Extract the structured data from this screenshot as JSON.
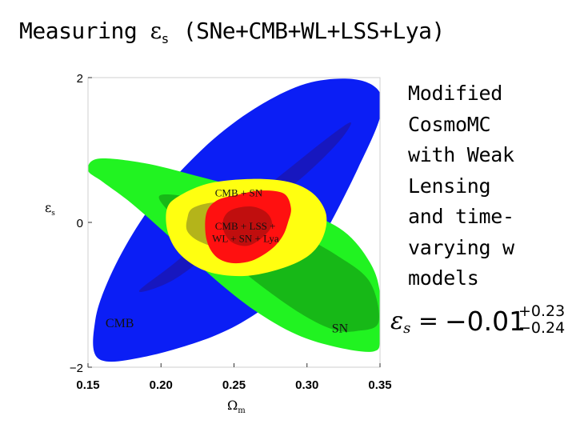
{
  "slide": {
    "title": "Measuring",
    "title_symbol": "ε",
    "title_subscript": "s",
    "title_rest": "(SNe+CMB+WL+LSS+Lya)",
    "side_note": "Modified\nCosmoMC\nwith Weak\nLensing\nand time-\nvarying w\nmodels",
    "result": {
      "lhs_symbol": "ε",
      "lhs_subscript": "s",
      "equals": "=",
      "value": "−0.01",
      "upper": "+0.23",
      "lower": "−0.24"
    }
  },
  "chart_data": {
    "type": "contour",
    "xlabel": "Ω",
    "xlabel_sub": "m",
    "ylabel": "ε",
    "ylabel_sub": "s",
    "xlim": [
      0.15,
      0.35
    ],
    "ylim": [
      -2,
      2
    ],
    "x_ticks": [
      {
        "value": 0.15,
        "label": "0.15"
      },
      {
        "value": 0.2,
        "label": "0.20"
      },
      {
        "value": 0.25,
        "label": "0.25"
      },
      {
        "value": 0.3,
        "label": "0.30"
      },
      {
        "value": 0.35,
        "label": "0.35"
      }
    ],
    "y_ticks": [
      {
        "value": 2,
        "label": "2"
      },
      {
        "value": 0,
        "label": "0"
      },
      {
        "value": -2,
        "label": "−2"
      }
    ],
    "annotations": [
      {
        "text": "CMB",
        "x": 0.162,
        "y": -1.45
      },
      {
        "text": "SN",
        "x": 0.317,
        "y": -1.52
      },
      {
        "text": "CMB + SN",
        "x": 0.237,
        "y": 0.36
      },
      {
        "text": "CMB + LSS +",
        "x": 0.237,
        "y": -0.1
      },
      {
        "text": "WL + SN + Lya",
        "x": 0.235,
        "y": -0.27
      }
    ],
    "colors": {
      "cmb_outer": "#0b1ef5",
      "cmb_inner": "#1717bf",
      "sn_outer": "#21f321",
      "sn_inner": "#17b817",
      "cmbsn_outer": "#ffff10",
      "cmbsn_inner": "#b4b41a",
      "all_outer": "#ff1010",
      "all_inner": "#c00e0e"
    },
    "contours": [
      {
        "name": "CMB",
        "level": "95%",
        "color": "cmb_outer",
        "points": [
          [
            0.157,
            -1.88
          ],
          [
            0.188,
            -1.86
          ],
          [
            0.235,
            -1.58
          ],
          [
            0.268,
            -1.22
          ],
          [
            0.295,
            -0.75
          ],
          [
            0.315,
            -0.05
          ],
          [
            0.335,
            0.75
          ],
          [
            0.35,
            1.45
          ],
          [
            0.349,
            1.82
          ],
          [
            0.331,
            1.98
          ],
          [
            0.3,
            1.92
          ],
          [
            0.268,
            1.62
          ],
          [
            0.236,
            1.15
          ],
          [
            0.205,
            0.52
          ],
          [
            0.183,
            -0.08
          ],
          [
            0.165,
            -0.75
          ],
          [
            0.155,
            -1.35
          ]
        ]
      },
      {
        "name": "CMB",
        "level": "68%",
        "color": "cmb_inner",
        "points": [
          [
            0.185,
            -0.95
          ],
          [
            0.21,
            -0.55
          ],
          [
            0.245,
            0.05
          ],
          [
            0.285,
            0.7
          ],
          [
            0.315,
            1.18
          ],
          [
            0.33,
            1.38
          ],
          [
            0.322,
            1.12
          ],
          [
            0.3,
            0.68
          ],
          [
            0.27,
            0.18
          ],
          [
            0.24,
            -0.32
          ],
          [
            0.208,
            -0.8
          ]
        ]
      },
      {
        "name": "SN",
        "level": "95%",
        "color": "sn_outer",
        "points": [
          [
            0.157,
            0.88
          ],
          [
            0.188,
            0.82
          ],
          [
            0.223,
            0.65
          ],
          [
            0.262,
            0.43
          ],
          [
            0.295,
            0.18
          ],
          [
            0.325,
            -0.12
          ],
          [
            0.343,
            -0.55
          ],
          [
            0.35,
            -0.98
          ],
          [
            0.35,
            -1.58
          ],
          [
            0.346,
            -1.78
          ],
          [
            0.322,
            -1.73
          ],
          [
            0.293,
            -1.55
          ],
          [
            0.263,
            -1.2
          ],
          [
            0.235,
            -0.75
          ],
          [
            0.207,
            -0.22
          ],
          [
            0.18,
            0.26
          ],
          [
            0.16,
            0.56
          ],
          [
            0.15,
            0.72
          ]
        ]
      },
      {
        "name": "SN",
        "level": "68%",
        "color": "sn_inner",
        "points": [
          [
            0.2,
            0.38
          ],
          [
            0.228,
            0.32
          ],
          [
            0.262,
            0.12
          ],
          [
            0.29,
            -0.12
          ],
          [
            0.32,
            -0.45
          ],
          [
            0.343,
            -0.82
          ],
          [
            0.349,
            -1.38
          ],
          [
            0.334,
            -1.5
          ],
          [
            0.318,
            -1.48
          ],
          [
            0.295,
            -1.25
          ],
          [
            0.265,
            -0.82
          ],
          [
            0.24,
            -0.4
          ],
          [
            0.218,
            -0.06
          ],
          [
            0.204,
            0.18
          ]
        ]
      },
      {
        "name": "CMB + SN",
        "level": "95%",
        "color": "cmbsn_outer",
        "points": [
          [
            0.204,
            0.18
          ],
          [
            0.212,
            0.36
          ],
          [
            0.233,
            0.54
          ],
          [
            0.262,
            0.6
          ],
          [
            0.287,
            0.56
          ],
          [
            0.304,
            0.4
          ],
          [
            0.313,
            0.12
          ],
          [
            0.311,
            -0.2
          ],
          [
            0.301,
            -0.46
          ],
          [
            0.282,
            -0.64
          ],
          [
            0.257,
            -0.74
          ],
          [
            0.232,
            -0.68
          ],
          [
            0.214,
            -0.46
          ],
          [
            0.205,
            -0.16
          ]
        ]
      },
      {
        "name": "CMB + SN",
        "level": "68%",
        "color": "cmbsn_inner",
        "points": [
          [
            0.218,
            0.05
          ],
          [
            0.222,
            0.2
          ],
          [
            0.238,
            0.28
          ],
          [
            0.262,
            0.26
          ],
          [
            0.28,
            0.16
          ],
          [
            0.284,
            -0.02
          ],
          [
            0.278,
            -0.2
          ],
          [
            0.262,
            -0.34
          ],
          [
            0.242,
            -0.36
          ],
          [
            0.226,
            -0.26
          ],
          [
            0.218,
            -0.12
          ]
        ]
      },
      {
        "name": "CMB + LSS + WL + SN + Lya",
        "level": "95%",
        "color": "all_outer",
        "points": [
          [
            0.231,
            0.12
          ],
          [
            0.238,
            0.3
          ],
          [
            0.252,
            0.38
          ],
          [
            0.268,
            0.44
          ],
          [
            0.284,
            0.4
          ],
          [
            0.289,
            0.2
          ],
          [
            0.287,
            0.0
          ],
          [
            0.283,
            -0.2
          ],
          [
            0.275,
            -0.38
          ],
          [
            0.262,
            -0.53
          ],
          [
            0.248,
            -0.56
          ],
          [
            0.237,
            -0.46
          ],
          [
            0.231,
            -0.22
          ]
        ]
      },
      {
        "name": "CMB + LSS + WL + SN + Lya",
        "level": "68%",
        "color": "all_inner",
        "points": [
          [
            0.243,
            0.06
          ],
          [
            0.249,
            0.18
          ],
          [
            0.262,
            0.22
          ],
          [
            0.272,
            0.14
          ],
          [
            0.276,
            -0.02
          ],
          [
            0.271,
            -0.18
          ],
          [
            0.26,
            -0.32
          ],
          [
            0.249,
            -0.28
          ],
          [
            0.243,
            -0.12
          ]
        ]
      }
    ]
  }
}
